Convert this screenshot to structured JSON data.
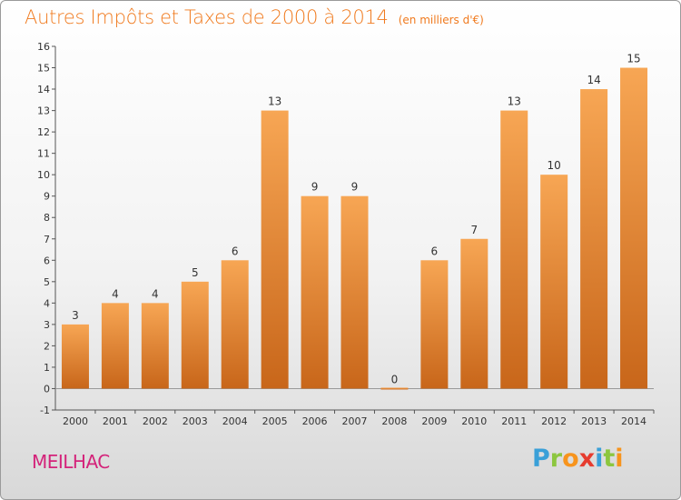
{
  "title": "Autres Impôts et Taxes de 2000 à 2014",
  "unit_note": "(en milliers d'€)",
  "commune": "MEILHAC",
  "logo": {
    "letters": [
      "P",
      "r",
      "o",
      "x",
      "i",
      "t",
      "i"
    ],
    "colors": [
      "#3aa0d8",
      "#8cc63f",
      "#f7941d",
      "#e63c2f",
      "#3aa0d8",
      "#8cc63f",
      "#f7941d"
    ]
  },
  "colors": {
    "bar_top": "#f7a654",
    "bar_bottom": "#c8661a",
    "accent": "#f07a1e"
  },
  "chart_data": {
    "type": "bar",
    "categories": [
      "2000",
      "2001",
      "2002",
      "2003",
      "2004",
      "2005",
      "2006",
      "2007",
      "2008",
      "2009",
      "2010",
      "2011",
      "2012",
      "2013",
      "2014"
    ],
    "values": [
      3,
      4,
      4,
      5,
      6,
      13,
      9,
      9,
      0,
      6,
      7,
      13,
      10,
      14,
      15
    ],
    "title": "Autres Impôts et Taxes de 2000 à 2014",
    "xlabel": "",
    "ylabel": "",
    "ylim": [
      -1,
      16
    ],
    "yticks": [
      -1,
      0,
      1,
      2,
      3,
      4,
      5,
      6,
      7,
      8,
      9,
      10,
      11,
      12,
      13,
      14,
      15,
      16
    ],
    "grid": false,
    "legend": "none"
  }
}
